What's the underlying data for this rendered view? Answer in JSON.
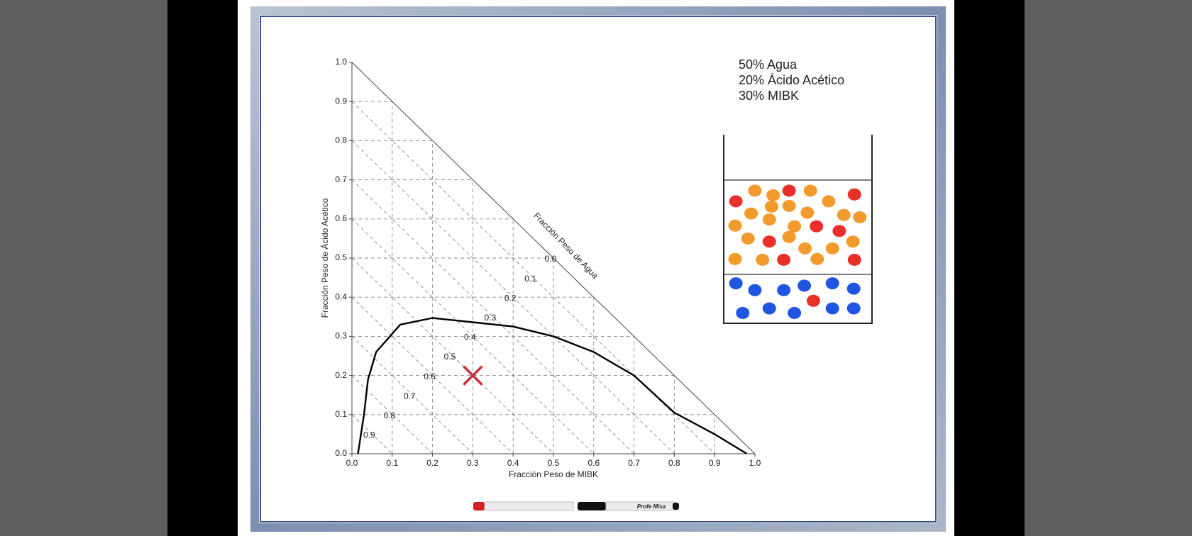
{
  "chart_data": {
    "type": "ternary",
    "xlabel": "Fracción Peso de MIBK",
    "ylabel": "Fracción Peso de Ácido Acético",
    "diagonal_label": "Fracción Peso de Agua",
    "xlim": [
      0,
      1
    ],
    "ylim": [
      0,
      1
    ],
    "xticks": [
      {
        "value": 0,
        "label": "0.0"
      },
      0.1,
      0.2,
      0.3,
      0.4,
      0.5,
      0.6,
      0.7,
      0.8,
      0.9,
      {
        "value": 1,
        "label": "1.0"
      }
    ],
    "yticks": [
      {
        "value": 0,
        "label": "0.0"
      },
      0.1,
      0.2,
      0.3,
      0.4,
      0.5,
      0.6,
      0.7,
      0.8,
      0.9,
      {
        "value": 1,
        "label": "1.0"
      }
    ],
    "water_ticks": [
      {
        "value": 0,
        "label": "0.0"
      },
      0.1,
      0.2,
      0.3,
      0.4,
      0.5,
      0.6,
      0.7,
      0.8,
      0.9
    ],
    "grid": true,
    "curve": {
      "color": "#000000",
      "x": [
        0.015,
        0.03,
        0.04,
        0.06,
        0.12,
        0.2,
        0.3,
        0.4,
        0.5,
        0.6,
        0.7,
        0.8,
        0.9,
        0.98
      ],
      "values": [
        0,
        0.1,
        0.19,
        0.26,
        0.33,
        0.347,
        0.336,
        0.325,
        0.3,
        0.26,
        0.2,
        0.105,
        0.05,
        0
      ]
    },
    "point": {
      "x": 0.3,
      "y": 0.2,
      "color": "#c8323c"
    },
    "composition": [
      "50% Agua",
      "20% Ácido Acético",
      "30% MIBK"
    ],
    "marker_label": "Profe Misa"
  }
}
